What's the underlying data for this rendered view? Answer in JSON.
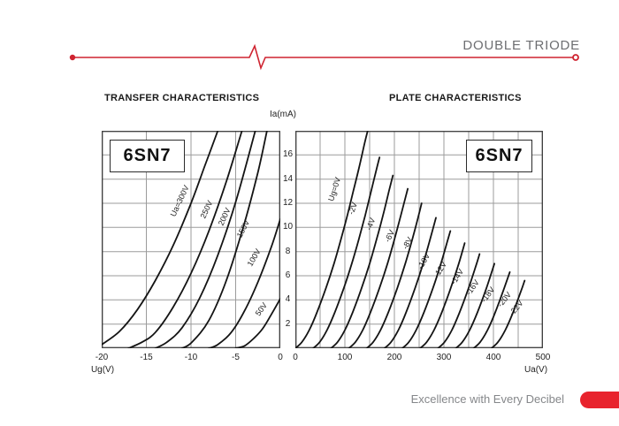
{
  "header": {
    "title": "DOUBLE TRIODE"
  },
  "footer": {
    "tagline": "Excellence with Every Decibel"
  },
  "colors": {
    "accent_red": "#cf2330",
    "pill_red": "#e8232d",
    "grid_gray": "#9b9b9b",
    "plot_border": "#3c3c3c",
    "curve_black": "#141414",
    "header_gray": "#6d6e71",
    "footer_gray": "#85878a"
  },
  "chart_data": [
    {
      "type": "line",
      "title": "TRANSFER CHARACTERISTICS",
      "badge": "6SN7",
      "xlabel": "Ug(V)",
      "ylabel": "Ia(mA)",
      "xlim": [
        -20,
        0
      ],
      "ylim": [
        0,
        18
      ],
      "x_ticks": [
        -20,
        -15,
        -10,
        -5,
        0
      ],
      "x_grid_step": 5,
      "y_ticks": [
        2,
        4,
        6,
        8,
        10,
        12,
        14,
        16
      ],
      "grid": true,
      "legend_position": "inline-rotated-labels",
      "series": [
        {
          "name": "Ua=300V",
          "label_at": [
            -11.0,
            12.1
          ],
          "label_rot": -65,
          "points": [
            [
              -20,
              0.3
            ],
            [
              -18,
              1.4
            ],
            [
              -16,
              3.2
            ],
            [
              -14,
              5.6
            ],
            [
              -12,
              8.5
            ],
            [
              -10,
              12.0
            ],
            [
              -8.5,
              15.0
            ],
            [
              -7,
              18
            ]
          ]
        },
        {
          "name": "250V",
          "label_at": [
            -8.0,
            11.4
          ],
          "label_rot": -65,
          "points": [
            [
              -17,
              0
            ],
            [
              -15.5,
              0.5
            ],
            [
              -14,
              1.3
            ],
            [
              -12,
              3.4
            ],
            [
              -10,
              6.2
            ],
            [
              -8,
              9.7
            ],
            [
              -6,
              13.9
            ],
            [
              -4.3,
              18
            ]
          ]
        },
        {
          "name": "200V",
          "label_at": [
            -6.0,
            10.8
          ],
          "label_rot": -65,
          "points": [
            [
              -14,
              0
            ],
            [
              -12.7,
              0.5
            ],
            [
              -11,
              1.7
            ],
            [
              -9,
              4.2
            ],
            [
              -7,
              7.7
            ],
            [
              -5,
              12.1
            ],
            [
              -2.8,
              18
            ]
          ]
        },
        {
          "name": "150V",
          "label_at": [
            -3.9,
            9.8
          ],
          "label_rot": -63,
          "points": [
            [
              -11,
              0
            ],
            [
              -9.9,
              0.5
            ],
            [
              -8,
              2.3
            ],
            [
              -6,
              5.7
            ],
            [
              -4,
              10.4
            ],
            [
              -2.5,
              14.6
            ],
            [
              -1.5,
              18
            ]
          ]
        },
        {
          "name": "100V",
          "label_at": [
            -2.7,
            7.4
          ],
          "label_rot": -60,
          "points": [
            [
              -8,
              0
            ],
            [
              -7,
              0.3
            ],
            [
              -5.5,
              1.3
            ],
            [
              -4,
              3.1
            ],
            [
              -2.5,
              5.5
            ],
            [
              -1,
              8.4
            ],
            [
              0,
              10.7
            ]
          ]
        },
        {
          "name": "50V",
          "label_at": [
            -1.9,
            3.1
          ],
          "label_rot": -55,
          "points": [
            [
              -5,
              0
            ],
            [
              -4,
              0.2
            ],
            [
              -3,
              0.8
            ],
            [
              -2,
              1.6
            ],
            [
              -1,
              2.8
            ],
            [
              0,
              4.1
            ]
          ]
        }
      ]
    },
    {
      "type": "line",
      "title": "PLATE CHARACTERISTICS",
      "badge": "6SN7",
      "xlabel": "Ua(V)",
      "ylabel": "Ia(mA)",
      "xlim": [
        0,
        500
      ],
      "ylim": [
        0,
        18
      ],
      "x_ticks": [
        0,
        100,
        200,
        300,
        400,
        500
      ],
      "x_grid_step": 50,
      "y_ticks": [
        2,
        4,
        6,
        8,
        10,
        12,
        14,
        16
      ],
      "grid": true,
      "legend_position": "inline-rotated-labels",
      "series": [
        {
          "name": "Ug=0V",
          "label_at": [
            84,
            13.1
          ],
          "label_rot": -72,
          "points": [
            [
              0,
              0
            ],
            [
              13,
              0.5
            ],
            [
              28,
              1.5
            ],
            [
              44,
              3
            ],
            [
              62,
              5
            ],
            [
              78,
              7
            ],
            [
              92,
              9
            ],
            [
              105,
              11
            ],
            [
              117,
              13
            ],
            [
              129,
              15
            ],
            [
              140,
              17
            ],
            [
              146,
              18
            ]
          ]
        },
        {
          "name": "-2V",
          "label_at": [
            121,
            11.5
          ],
          "label_rot": -70,
          "points": [
            [
              36,
              0
            ],
            [
              49,
              0.5
            ],
            [
              64,
              1.5
            ],
            [
              80,
              3
            ],
            [
              98,
              5
            ],
            [
              114,
              7
            ],
            [
              128,
              9
            ],
            [
              141,
              11
            ],
            [
              153,
              13
            ],
            [
              165,
              15
            ],
            [
              170,
              15.8
            ]
          ]
        },
        {
          "name": "-4V",
          "label_at": [
            157,
            10.2
          ],
          "label_rot": -68,
          "points": [
            [
              72,
              0
            ],
            [
              85,
              0.5
            ],
            [
              100,
              1.5
            ],
            [
              116,
              3
            ],
            [
              134,
              5
            ],
            [
              150,
              7
            ],
            [
              164,
              9
            ],
            [
              177,
              11
            ],
            [
              189,
              13
            ],
            [
              197,
              14.3
            ]
          ]
        },
        {
          "name": "-6V",
          "label_at": [
            195,
            9.2
          ],
          "label_rot": -64,
          "points": [
            [
              108,
              0
            ],
            [
              121,
              0.5
            ],
            [
              136,
              1.5
            ],
            [
              152,
              3
            ],
            [
              170,
              5
            ],
            [
              186,
              7
            ],
            [
              200,
              9
            ],
            [
              213,
              11
            ],
            [
              227,
              13.2
            ]
          ]
        },
        {
          "name": "-8V",
          "label_at": [
            231,
            8.6
          ],
          "label_rot": -62,
          "points": [
            [
              144,
              0
            ],
            [
              157,
              0.5
            ],
            [
              172,
              1.5
            ],
            [
              188,
              3
            ],
            [
              206,
              5
            ],
            [
              222,
              7
            ],
            [
              236,
              9
            ],
            [
              249,
              11
            ],
            [
              255,
              12
            ]
          ]
        },
        {
          "name": "-10V",
          "label_at": [
            264,
            7.1
          ],
          "label_rot": -60,
          "points": [
            [
              180,
              0
            ],
            [
              193,
              0.5
            ],
            [
              208,
              1.5
            ],
            [
              224,
              3
            ],
            [
              242,
              5
            ],
            [
              258,
              7
            ],
            [
              272,
              9
            ],
            [
              284,
              10.8
            ]
          ]
        },
        {
          "name": "-12V",
          "label_at": [
            297,
            6.4
          ],
          "label_rot": -58,
          "points": [
            [
              216,
              0
            ],
            [
              229,
              0.5
            ],
            [
              244,
              1.5
            ],
            [
              260,
              3
            ],
            [
              278,
              5
            ],
            [
              294,
              7
            ],
            [
              308,
              9
            ],
            [
              313,
              9.7
            ]
          ]
        },
        {
          "name": "-14V",
          "label_at": [
            331,
            5.8
          ],
          "label_rot": -57,
          "points": [
            [
              252,
              0
            ],
            [
              265,
              0.5
            ],
            [
              280,
              1.5
            ],
            [
              296,
              3
            ],
            [
              314,
              5
            ],
            [
              330,
              7
            ],
            [
              342,
              8.7
            ]
          ]
        },
        {
          "name": "-16V",
          "label_at": [
            362,
            4.9
          ],
          "label_rot": -55,
          "points": [
            [
              288,
              0
            ],
            [
              301,
              0.5
            ],
            [
              316,
              1.5
            ],
            [
              332,
              3
            ],
            [
              350,
              5
            ],
            [
              366,
              7
            ],
            [
              372,
              7.8
            ]
          ]
        },
        {
          "name": "-18V",
          "label_at": [
            393,
            4.3
          ],
          "label_rot": -53,
          "points": [
            [
              324,
              0
            ],
            [
              337,
              0.5
            ],
            [
              352,
              1.5
            ],
            [
              368,
              3
            ],
            [
              386,
              5
            ],
            [
              402,
              7
            ]
          ]
        },
        {
          "name": "-20V",
          "label_at": [
            426,
            3.9
          ],
          "label_rot": -51,
          "points": [
            [
              360,
              0
            ],
            [
              373,
              0.5
            ],
            [
              388,
              1.5
            ],
            [
              404,
              3
            ],
            [
              422,
              5
            ],
            [
              433,
              6.3
            ]
          ]
        },
        {
          "name": "-22V",
          "label_at": [
            450,
            3.2
          ],
          "label_rot": -50,
          "points": [
            [
              396,
              0
            ],
            [
              409,
              0.5
            ],
            [
              424,
              1.5
            ],
            [
              440,
              3
            ],
            [
              458,
              5
            ],
            [
              463,
              5.6
            ]
          ]
        }
      ]
    }
  ]
}
